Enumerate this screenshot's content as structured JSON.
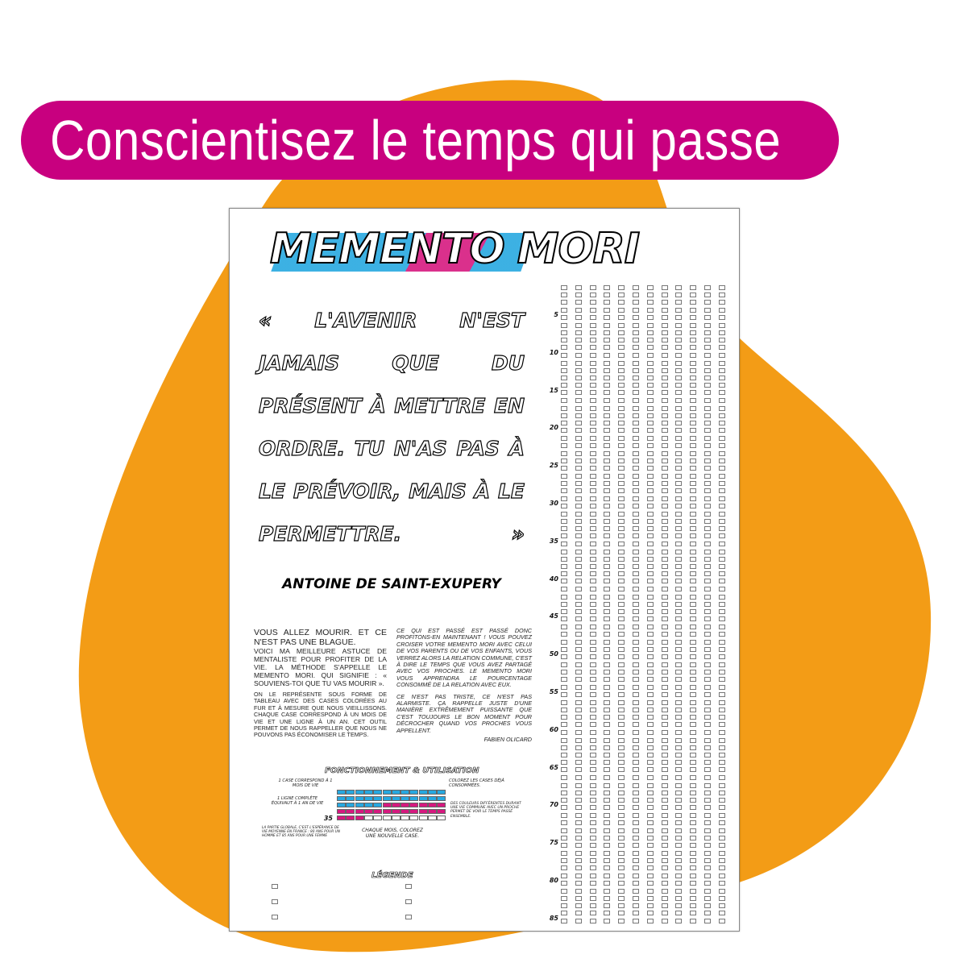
{
  "banner": {
    "title": "Conscientisez le temps qui passe"
  },
  "colors": {
    "orange": "#F39C16",
    "magenta": "#C8007F",
    "blue": "#27A8E0",
    "pink": "#D6197F"
  },
  "poster": {
    "logo": {
      "word1": "MEMENTO",
      "word2": "MORI"
    },
    "quote": "« L'avenir n'est jamais que du présent à mettre en ordre. Tu n'as pas à le prévoir, mais à le permettre. »",
    "author": "ANTOINE DE SAINT-EXUPERY",
    "col1": {
      "lead": "VOUS ALLEZ MOURIR. ET CE N'EST PAS UNE BLAGUE.",
      "p1": "Voici ma meilleure astuce de mentaliste pour profiter de la vie. La méthode s'appelle le Memento Mori. Qui signifie : « Souviens-toi que tu vas mourir ».",
      "p2": "On le représente sous forme de tableau avec des cases colorées au fur et à mesure que nous vieillissons. Chaque case correspond à un mois de vie et une ligne à un an. Cet outil permet de nous rappeller que nous ne pouvons pas économiser le temps."
    },
    "col2": {
      "p1": "Ce qui est passé est passé donc profitons-en maintenant ! Vous pouvez croiser votre Memento Mori avec celui de vos parents ou de vos enfants, vous verrez alors la relation commune, c'est à dire le temps que vous avez partagé avec vos proches. Le Memento Mori vous apprendra le pourcentage consommé de la relation avec eux.",
      "p2": "Ce n'est pas triste, ce n'est pas alarmiste. Ça rappelle juste d'une manière extrêmement puissante que c'est toujours le bon moment pour décrocher quand vos proches vous appellent.",
      "signature": "FABIEN OLICARD"
    },
    "howto": {
      "title": "FONCTIONNEMENT & UTILISATION",
      "note_case": "1 case correspond à 1 mois de vie",
      "note_line": "1 ligne complète équivaut à 1 an de vie",
      "note_color": "Colorez les cases déjà consommées.",
      "note_diff": "Des couleurs différentes durant une vie commune avec un proche permet de voir le temps passé ensemble.",
      "note_global": "La partie globale, c'est l'espérance de vie moyenne en France : 80 ans pour un homme et 85 ans pour une femme",
      "note_month": "Chaque mois, colorez une nouvelle case.",
      "age_label": "35"
    },
    "legend": {
      "title": "LÉGENDE"
    },
    "grid": {
      "columns": 12,
      "rows": 85,
      "age_labels": [
        5,
        10,
        15,
        20,
        25,
        30,
        35,
        40,
        45,
        50,
        55,
        60,
        65,
        70,
        75,
        80,
        85
      ]
    }
  }
}
